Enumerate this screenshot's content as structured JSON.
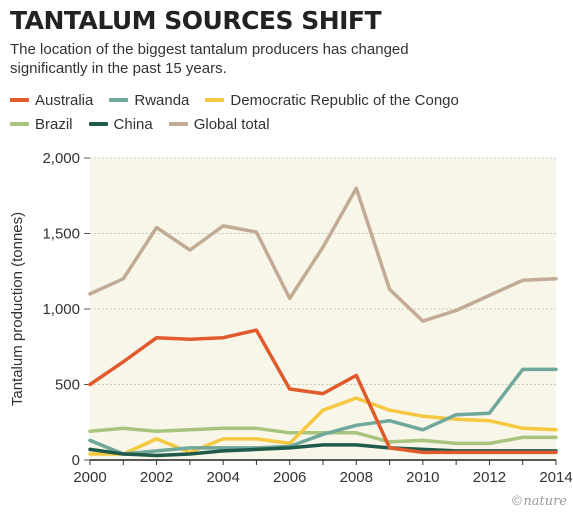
{
  "header": {
    "title": "TANTALUM SOURCES SHIFT",
    "subtitle": "The location of the biggest tantalum producers has changed significantly in the past 15 years."
  },
  "legend": [
    {
      "label": "Australia",
      "color": "#e05a2b"
    },
    {
      "label": "Rwanda",
      "color": "#6fa89a"
    },
    {
      "label": "Democratic Republic of the Congo",
      "color": "#f5c842"
    },
    {
      "label": "Brazil",
      "color": "#a9c47f"
    },
    {
      "label": "China",
      "color": "#1f5a4a"
    },
    {
      "label": "Global total",
      "color": "#c2ab94"
    }
  ],
  "credit": "©nature",
  "chart_data": {
    "type": "line",
    "title": "TANTALUM SOURCES SHIFT",
    "subtitle": "The location of the biggest tantalum producers has changed significantly in the past 15 years.",
    "ylabel": "Tantalum production (tonnes)",
    "xlabel": "",
    "xlim": [
      2000,
      2014
    ],
    "ylim": [
      0,
      2000
    ],
    "x_ticks": [
      "2000",
      "2002",
      "2004",
      "2006",
      "2008",
      "2010",
      "2012",
      "2014"
    ],
    "y_ticks": [
      "0",
      "500",
      "1,000",
      "1,500",
      "2,000"
    ],
    "grid": "horizontal dotted",
    "legend_position": "top",
    "x": [
      2000,
      2001,
      2002,
      2003,
      2004,
      2005,
      2006,
      2007,
      2008,
      2009,
      2010,
      2011,
      2012,
      2013,
      2014
    ],
    "series": [
      {
        "name": "Global total",
        "color": "#c2ab94",
        "values": [
          1100,
          1200,
          1540,
          1390,
          1550,
          1510,
          1070,
          1410,
          1800,
          1130,
          920,
          990,
          1090,
          1190,
          1200
        ]
      },
      {
        "name": "Brazil",
        "color": "#a9c47f",
        "values": [
          190,
          210,
          190,
          200,
          210,
          210,
          180,
          180,
          180,
          120,
          130,
          110,
          110,
          150,
          150
        ]
      },
      {
        "name": "Democratic Republic of the Congo",
        "color": "#f5c842",
        "values": [
          40,
          40,
          140,
          50,
          140,
          140,
          110,
          330,
          410,
          330,
          290,
          270,
          260,
          210,
          200
        ]
      },
      {
        "name": "Rwanda",
        "color": "#6fa89a",
        "values": [
          130,
          40,
          60,
          80,
          80,
          80,
          90,
          170,
          230,
          260,
          200,
          300,
          310,
          600,
          600
        ]
      },
      {
        "name": "China",
        "color": "#1f5a4a",
        "values": [
          70,
          40,
          30,
          40,
          60,
          70,
          80,
          100,
          100,
          80,
          70,
          60,
          60,
          60,
          60
        ]
      },
      {
        "name": "Australia",
        "color": "#e05a2b",
        "values": [
          500,
          650,
          810,
          800,
          810,
          860,
          470,
          440,
          560,
          80,
          50,
          50,
          50,
          50,
          50
        ]
      }
    ]
  }
}
